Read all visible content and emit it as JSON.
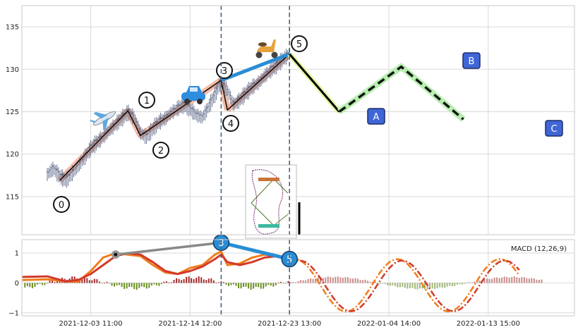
{
  "chart_data": [
    {
      "type": "line",
      "panel": "price",
      "ylim": [
        110.5,
        137.5
      ],
      "yticks": [
        "115",
        "120",
        "125",
        "130",
        "135"
      ],
      "x_tick_labels": [
        "2021-12-03 11:00",
        "2021-12-14 12:00",
        "2021-12-23 13:00",
        "2022-01-04 14:00",
        "2022-01-13 15:00"
      ],
      "grid": true,
      "price_points": [
        [
          0,
          117.6
        ],
        [
          2,
          118.3
        ],
        [
          4,
          117.4
        ],
        [
          6,
          116.9
        ],
        [
          8,
          117.7
        ],
        [
          10,
          118.6
        ],
        [
          12,
          119.6
        ],
        [
          14,
          120.7
        ],
        [
          16,
          121.4
        ],
        [
          18,
          122.0
        ],
        [
          20,
          122.8
        ],
        [
          22,
          123.5
        ],
        [
          24,
          124.2
        ],
        [
          26,
          124.9
        ],
        [
          28,
          124.3
        ],
        [
          30,
          122.5
        ],
        [
          32,
          122.0
        ],
        [
          34,
          123.0
        ],
        [
          36,
          123.8
        ],
        [
          38,
          124.2
        ],
        [
          40,
          124.9
        ],
        [
          42,
          125.4
        ],
        [
          44,
          125.8
        ],
        [
          46,
          125.3
        ],
        [
          48,
          124.6
        ],
        [
          50,
          124.3
        ],
        [
          52,
          125.6
        ],
        [
          54,
          127.0
        ],
        [
          56,
          128.6
        ],
        [
          58,
          127.5
        ],
        [
          60,
          125.8
        ],
        [
          62,
          126.4
        ],
        [
          64,
          127.2
        ],
        [
          66,
          127.9
        ],
        [
          68,
          128.4
        ],
        [
          70,
          129.2
        ],
        [
          72,
          129.9
        ],
        [
          74,
          130.5
        ],
        [
          76,
          131.2
        ],
        [
          78,
          131.8
        ]
      ],
      "wave_labels": [
        "0",
        "1",
        "2",
        "3",
        "4",
        "5"
      ],
      "wave_points": [
        [
          4,
          116.9
        ],
        [
          26,
          125.1
        ],
        [
          30,
          122.2
        ],
        [
          56,
          128.7
        ],
        [
          58,
          125.2
        ],
        [
          78,
          131.8
        ]
      ],
      "correction_labels": [
        "A",
        "B",
        "C"
      ],
      "correction_points": [
        [
          78,
          131.8
        ],
        [
          94,
          125.0
        ],
        [
          114,
          130.3
        ],
        [
          134,
          124.1
        ]
      ],
      "marker_vlines": [
        56,
        78
      ]
    },
    {
      "type": "line",
      "panel": "indicator",
      "legend": "MACD (12,26,9)",
      "ylim": [
        -1.1,
        1.45
      ],
      "yticks": [
        "1",
        "0",
        "−1"
      ],
      "wave_labels": [
        "3",
        "5"
      ],
      "wave_points": [
        [
          56,
          1.35
        ],
        [
          78,
          0.8
        ]
      ]
    }
  ]
}
